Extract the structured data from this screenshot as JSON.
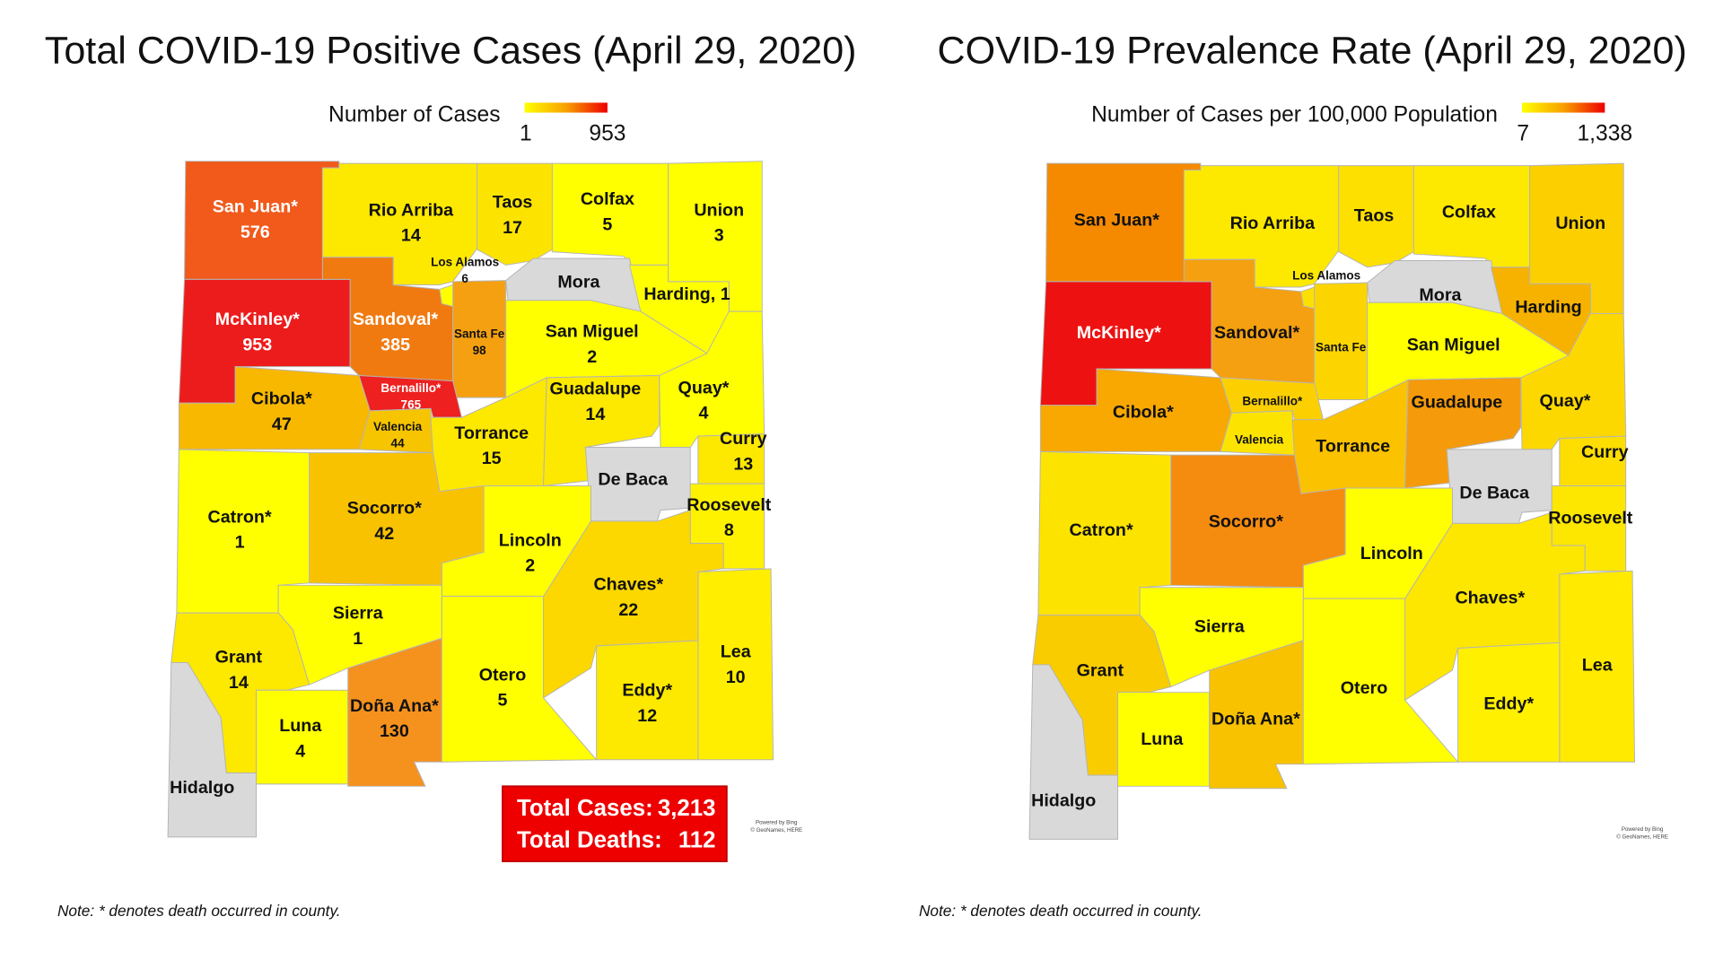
{
  "maps": [
    {
      "title": "Total COVID-19 Positive Cases (April 29, 2020)",
      "legend": {
        "title": "Number of Cases",
        "min": 1,
        "max": 953
      },
      "counties": [
        {
          "name": "San Juan*",
          "value": 576,
          "color": "#f15a1b"
        },
        {
          "name": "McKinley*",
          "value": 953,
          "color": "#ed1c1c"
        },
        {
          "name": "Rio Arriba",
          "value": 14,
          "color": "#fde800"
        },
        {
          "name": "Sandoval*",
          "value": 385,
          "color": "#f07a10"
        },
        {
          "name": "Los Alamos",
          "value": 6,
          "color": "#ffff00"
        },
        {
          "name": "Taos",
          "value": 17,
          "color": "#fde400"
        },
        {
          "name": "Colfax",
          "value": 5,
          "color": "#ffff00"
        },
        {
          "name": "Union",
          "value": 3,
          "color": "#ffff00"
        },
        {
          "name": "Mora",
          "color": "#d9d9d9"
        },
        {
          "name": "Harding, 1",
          "color": "#ffff00"
        },
        {
          "name": "Santa Fe",
          "value": 98,
          "color": "#f5a010"
        },
        {
          "name": "San Miguel",
          "value": 2,
          "color": "#ffff00"
        },
        {
          "name": "Bernalillo*",
          "value": 765,
          "color": "#ee2020"
        },
        {
          "name": "Cibola*",
          "value": 47,
          "color": "#f8b800"
        },
        {
          "name": "Valencia",
          "value": 44,
          "color": "#f7c400"
        },
        {
          "name": "Torrance",
          "value": 15,
          "color": "#fde800"
        },
        {
          "name": "Guadalupe",
          "value": 14,
          "color": "#fde800"
        },
        {
          "name": "Quay*",
          "value": 4,
          "color": "#ffff00"
        },
        {
          "name": "Curry",
          "value": 13,
          "color": "#fde800"
        },
        {
          "name": "De Baca",
          "color": "#d9d9d9"
        },
        {
          "name": "Roosevelt",
          "value": 8,
          "color": "#fff200"
        },
        {
          "name": "Lea",
          "value": 10,
          "color": "#ffee00"
        },
        {
          "name": "Chaves*",
          "value": 22,
          "color": "#fcd800"
        },
        {
          "name": "Eddy*",
          "value": 12,
          "color": "#fde800"
        },
        {
          "name": "Lincoln",
          "value": 2,
          "color": "#ffff00"
        },
        {
          "name": "Socorro*",
          "value": 42,
          "color": "#f9c200"
        },
        {
          "name": "Catron*",
          "value": 1,
          "color": "#ffff00"
        },
        {
          "name": "Sierra",
          "value": 1,
          "color": "#ffff00"
        },
        {
          "name": "Grant",
          "value": 14,
          "color": "#fde800"
        },
        {
          "name": "Hidalgo",
          "color": "#d9d9d9"
        },
        {
          "name": "Luna",
          "value": 4,
          "color": "#ffff00"
        },
        {
          "name": "Doña Ana*",
          "value": 130,
          "color": "#f5921e"
        },
        {
          "name": "Otero",
          "value": 5,
          "color": "#ffff00"
        }
      ],
      "totals": [
        {
          "label": "Total Cases:",
          "value": "3,213"
        },
        {
          "label": "Total Deaths:",
          "value": "112"
        }
      ],
      "credit": [
        "Powered by Bing",
        "© GeoNames, HERE"
      ],
      "note": "Note: * denotes death occurred in county."
    },
    {
      "title": "COVID-19 Prevalence Rate (April 29, 2020)",
      "legend": {
        "title": "Number of Cases per 100,000 Population",
        "min": 7,
        "max": "1,338"
      },
      "counties": [
        {
          "name": "San Juan*",
          "color": "#f58a00"
        },
        {
          "name": "McKinley*",
          "color": "#ee1111"
        },
        {
          "name": "Rio Arriba",
          "color": "#fde800"
        },
        {
          "name": "Sandoval*",
          "color": "#f5a010"
        },
        {
          "name": "Los Alamos",
          "color": "#fde000"
        },
        {
          "name": "Taos",
          "color": "#fde000"
        },
        {
          "name": "Colfax",
          "color": "#fde800"
        },
        {
          "name": "Union",
          "color": "#fcd000"
        },
        {
          "name": "Mora",
          "color": "#d9d9d9"
        },
        {
          "name": "Harding",
          "color": "#f7b200"
        },
        {
          "name": "Santa Fe",
          "color": "#fcd400"
        },
        {
          "name": "San Miguel",
          "color": "#ffff00"
        },
        {
          "name": "Bernalillo*",
          "color": "#fcd000"
        },
        {
          "name": "Cibola*",
          "color": "#f8a800"
        },
        {
          "name": "Valencia",
          "color": "#fde400"
        },
        {
          "name": "Torrance",
          "color": "#fbc200"
        },
        {
          "name": "Guadalupe",
          "color": "#f59a0a"
        },
        {
          "name": "Quay*",
          "color": "#fdd800"
        },
        {
          "name": "Curry",
          "color": "#fdde00"
        },
        {
          "name": "De Baca",
          "color": "#d9d9d9"
        },
        {
          "name": "Roosevelt",
          "color": "#fde600"
        },
        {
          "name": "Lea",
          "color": "#ffea00"
        },
        {
          "name": "Chaves*",
          "color": "#fde600"
        },
        {
          "name": "Eddy*",
          "color": "#fff000"
        },
        {
          "name": "Lincoln",
          "color": "#ffff00"
        },
        {
          "name": "Socorro*",
          "color": "#f58c10"
        },
        {
          "name": "Catron*",
          "color": "#fde400"
        },
        {
          "name": "Sierra",
          "color": "#ffff00"
        },
        {
          "name": "Grant",
          "color": "#f9cc00"
        },
        {
          "name": "Hidalgo",
          "color": "#d9d9d9"
        },
        {
          "name": "Luna",
          "color": "#ffff00"
        },
        {
          "name": "Doña Ana*",
          "color": "#f8c200"
        },
        {
          "name": "Otero",
          "color": "#ffff00"
        }
      ],
      "credit": [
        "Powered by Bing",
        "© GeoNames, HERE"
      ],
      "note": "Note: * denotes death occurred in county."
    }
  ]
}
